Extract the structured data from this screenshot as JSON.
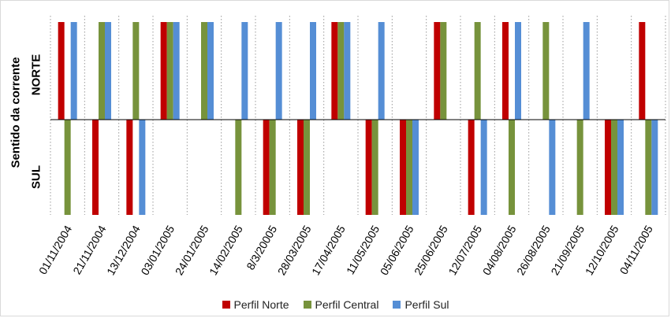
{
  "chart_data": {
    "type": "bar",
    "ylabel": "Sentido da corrente",
    "y_categories": [
      "NORTE",
      "SUL"
    ],
    "categories": [
      "01/11/2004",
      "21/11/2004",
      "13/12/2004",
      "03/01/2005",
      "24/01/2005",
      "14/02/2005",
      "8/3/20005",
      "28/03/2005",
      "17/04/2005",
      "11/05/2005",
      "05/06/2005",
      "25/06/2005",
      "12/07/2005",
      "04/08/2005",
      "26/08/2005",
      "21/09/2005",
      "12/10/2005",
      "04/11/2005"
    ],
    "series": [
      {
        "name": "Perfil Norte",
        "color": "#c00000",
        "values": [
          1,
          -1,
          -1,
          1,
          0,
          0,
          -1,
          -1,
          1,
          -1,
          -1,
          1,
          -1,
          1,
          0,
          0,
          -1,
          1
        ]
      },
      {
        "name": "Perfil Central",
        "color": "#77933c",
        "values": [
          -1,
          1,
          1,
          1,
          1,
          -1,
          -1,
          -1,
          1,
          -1,
          -1,
          1,
          1,
          -1,
          1,
          -1,
          -1,
          -1
        ]
      },
      {
        "name": "Perfil Sul",
        "color": "#558ed5",
        "values": [
          1,
          1,
          -1,
          1,
          1,
          1,
          1,
          1,
          1,
          1,
          -1,
          0,
          -1,
          1,
          -1,
          1,
          -1,
          -1
        ]
      }
    ],
    "legend": "bottom",
    "grid": "vertical-dotted"
  }
}
